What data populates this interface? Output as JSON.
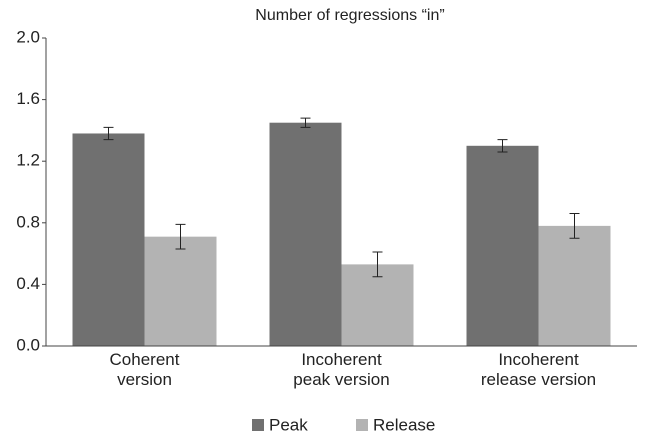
{
  "chart_data": {
    "type": "bar",
    "title": "Number of regressions “in”",
    "categories": [
      "Coherent\nversion",
      "Incoherent\npeak version",
      "Incoherent\nrelease version"
    ],
    "series": [
      {
        "name": "Peak",
        "color": "#707070",
        "values": [
          1.38,
          1.45,
          1.3
        ],
        "errors": [
          0.04,
          0.03,
          0.04
        ]
      },
      {
        "name": "Release",
        "color": "#b3b3b3",
        "values": [
          0.71,
          0.53,
          0.78
        ],
        "errors": [
          0.08,
          0.08,
          0.08
        ]
      }
    ],
    "ylim": [
      0,
      2
    ],
    "yticks": [
      {
        "value": 0,
        "label": "0.0"
      },
      0.4,
      0.8,
      1.2,
      1.6,
      {
        "value": 2,
        "label": "2.0"
      }
    ],
    "grid": false,
    "legend": "bottom"
  }
}
